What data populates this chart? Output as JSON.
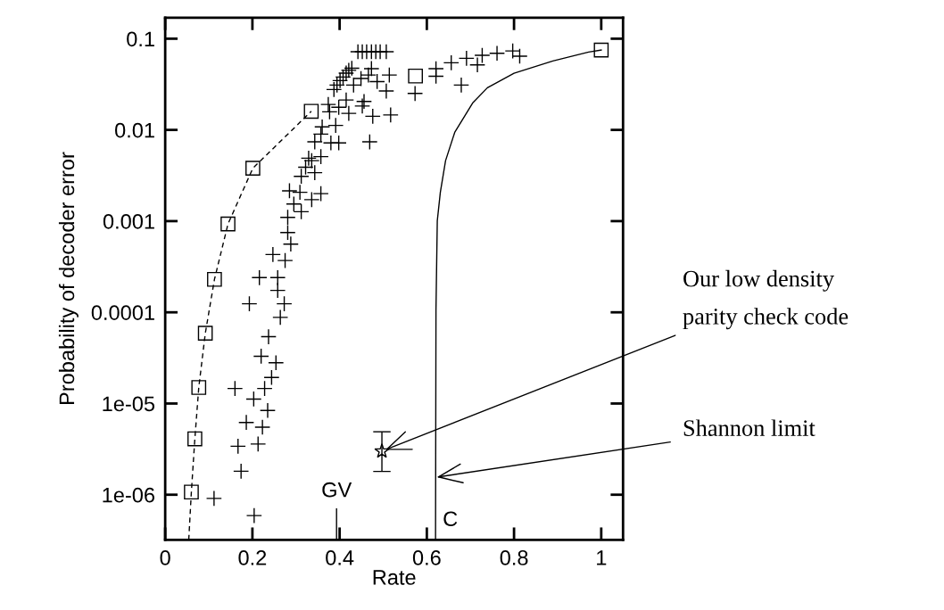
{
  "chart_data": {
    "type": "scatter",
    "xlabel": "Rate",
    "ylabel": "Probability of decoder error",
    "log": "y",
    "xlim": [
      0,
      1.05
    ],
    "ylim": [
      3.2e-07,
      0.17
    ],
    "xticks": [
      0,
      0.2,
      0.4,
      0.6,
      0.8,
      1
    ],
    "yticks": [
      {
        "value": 0.1,
        "label": "0.1"
      },
      {
        "value": 0.01,
        "label": "0.01"
      },
      {
        "value": 0.001,
        "label": "0.001"
      },
      {
        "value": 0.0001,
        "label": "0.0001"
      },
      {
        "value": 1e-05,
        "label": "1e-05"
      },
      {
        "value": 1e-06,
        "label": "1e-06"
      }
    ],
    "grid": false,
    "legend": false,
    "series": [
      {
        "type": "line",
        "color": "#000000",
        "marker": "none",
        "line_style": "dashed",
        "x": [
          0.054,
          0.06,
          0.068,
          0.077,
          0.092,
          0.113,
          0.144,
          0.201,
          0.335
        ],
        "values": [
          3.2e-07,
          1.07e-06,
          4.1e-06,
          1.5e-05,
          5.9e-05,
          0.00023,
          0.00093,
          0.0038,
          0.016
        ]
      },
      {
        "type": "scatter",
        "color": "#000000",
        "marker": "square",
        "x": [
          0.06,
          0.068,
          0.077,
          0.092,
          0.113,
          0.144,
          0.201,
          0.335,
          0.574,
          1.0
        ],
        "values": [
          1.07e-06,
          4.1e-06,
          1.5e-05,
          5.9e-05,
          0.00023,
          0.00093,
          0.0038,
          0.016,
          0.039,
          0.075
        ]
      },
      {
        "color": "#000000",
        "marker": "cross",
        "x": [
          0.442,
          0.452,
          0.462,
          0.473,
          0.483,
          0.493,
          0.507,
          0.428,
          0.421,
          0.415,
          0.408,
          0.401,
          0.394,
          0.387,
          0.473,
          0.466,
          0.514,
          0.486,
          0.449,
          0.432,
          0.507,
          0.415,
          0.456,
          0.452,
          0.374,
          0.398,
          0.377,
          0.421,
          0.476,
          0.517,
          0.391,
          0.36,
          0.357,
          0.343,
          0.38,
          0.398,
          0.469,
          0.357,
          0.329,
          0.336,
          0.322,
          0.343,
          0.312,
          0.285,
          0.309,
          0.336,
          0.357,
          0.295,
          0.312,
          0.281,
          0.281,
          0.288,
          0.247,
          0.275,
          0.216,
          0.258,
          0.258,
          0.193,
          0.273,
          0.264,
          0.237,
          0.22,
          0.254,
          0.244,
          0.16,
          0.228,
          0.203,
          0.235,
          0.186,
          0.223,
          0.167,
          0.213,
          0.174,
          0.112,
          0.204,
          0.573,
          0.621,
          0.621,
          0.656,
          0.679,
          0.691,
          0.716,
          0.727,
          0.761,
          0.797,
          0.813
        ],
        "values": [
          0.072,
          0.072,
          0.072,
          0.072,
          0.072,
          0.072,
          0.072,
          0.0475,
          0.045,
          0.042,
          0.038,
          0.0347,
          0.031,
          0.0277,
          0.047,
          0.04,
          0.04,
          0.0339,
          0.0366,
          0.031,
          0.0267,
          0.0213,
          0.0205,
          0.0183,
          0.019,
          0.0177,
          0.0158,
          0.0152,
          0.0141,
          0.0146,
          0.0112,
          0.0108,
          0.009,
          0.0074,
          0.0072,
          0.0072,
          0.0074,
          0.0051,
          0.0049,
          0.0046,
          0.0039,
          0.0034,
          0.0031,
          0.00215,
          0.00207,
          0.00172,
          0.002,
          0.00154,
          0.00127,
          0.0011,
          0.00075,
          0.00056,
          0.00043,
          0.00037,
          0.00024,
          0.00024,
          0.000174,
          0.000124,
          0.000124,
          8.8e-05,
          5.4e-05,
          3.3e-05,
          2.8e-05,
          1.93e-05,
          1.46e-05,
          1.46e-05,
          1.12e-05,
          8.4e-06,
          6.2e-06,
          5.5e-06,
          3.4e-06,
          3.6e-06,
          1.81e-06,
          9.1e-07,
          5.9e-07,
          0.0251,
          0.0469,
          0.0388,
          0.0545,
          0.031,
          0.061,
          0.0516,
          0.0657,
          0.0692,
          0.0735,
          0.0643
        ]
      },
      {
        "type": "line",
        "color": "#000000",
        "marker": "none",
        "line_style": "solid",
        "x": [
          0.62,
          0.621,
          0.624,
          0.631,
          0.643,
          0.664,
          0.705,
          0.739,
          0.8,
          0.889,
          0.971,
          1.0
        ],
        "values": [
          3.2e-07,
          0.000106,
          0.00101,
          0.00207,
          0.0046,
          0.0094,
          0.0197,
          0.029,
          0.0418,
          0.0569,
          0.0713,
          0.0752
        ]
      },
      {
        "type": "line",
        "color": "#000000",
        "marker": "none",
        "line_style": "solid",
        "x": [
          0.393,
          0.393
        ],
        "values": [
          3.2e-07,
          7e-07
        ]
      },
      {
        "color": "#000000",
        "marker": "star",
        "x": [
          0.497
        ],
        "values": [
          3e-06
        ],
        "errors": [
          [
            1.8e-06,
            4.9e-06
          ]
        ]
      }
    ],
    "annotations": [
      {
        "text": "GV",
        "x": 0.393,
        "y": 7e-07
      },
      {
        "text": "C",
        "x": 0.625,
        "y": 5.2e-07
      },
      {
        "text": "Our low density\nparity check code",
        "x": 0.497,
        "y": 3e-06
      },
      {
        "text": "Shannon limit",
        "x": 0.62,
        "y": 1.55e-06
      }
    ]
  }
}
